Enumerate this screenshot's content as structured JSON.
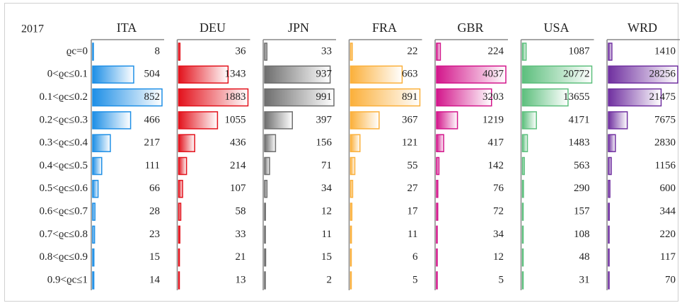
{
  "chart_data": {
    "type": "table_bars",
    "title": "2017",
    "categories": [
      "ϱc=0",
      "0<ϱc≤0.1",
      "0.1<ϱc≤0.2",
      "0.2<ϱc≤0.3",
      "0.3<ϱc≤0.4",
      "0.4<ϱc≤0.5",
      "0.5<ϱc≤0.6",
      "0.6<ϱc≤0.7",
      "0.7<ϱc≤0.8",
      "0.8<ϱc≤0.9",
      "0.9<ϱc≤1"
    ],
    "series": [
      {
        "name": "ITA",
        "color": "#1e8fe6",
        "values": [
          8,
          504,
          852,
          466,
          217,
          111,
          66,
          28,
          23,
          15,
          14
        ]
      },
      {
        "name": "DEU",
        "color": "#e3121c",
        "values": [
          36,
          1343,
          1883,
          1055,
          436,
          214,
          107,
          58,
          33,
          21,
          13
        ]
      },
      {
        "name": "JPN",
        "color": "#6e6e6e",
        "values": [
          33,
          937,
          991,
          397,
          156,
          71,
          34,
          12,
          11,
          15,
          2
        ]
      },
      {
        "name": "FRA",
        "color": "#fbb03b",
        "values": [
          22,
          663,
          891,
          367,
          121,
          55,
          27,
          17,
          11,
          6,
          5
        ]
      },
      {
        "name": "GBR",
        "color": "#d3168b",
        "values": [
          224,
          4037,
          3203,
          1219,
          417,
          142,
          76,
          72,
          34,
          12,
          5
        ]
      },
      {
        "name": "USA",
        "color": "#5dbf7d",
        "values": [
          1087,
          20772,
          13655,
          4171,
          1483,
          563,
          290,
          157,
          108,
          48,
          31
        ]
      },
      {
        "name": "WRD",
        "color": "#7030a0",
        "values": [
          1410,
          28256,
          21475,
          7675,
          2830,
          1156,
          600,
          344,
          220,
          117,
          70
        ]
      }
    ]
  }
}
